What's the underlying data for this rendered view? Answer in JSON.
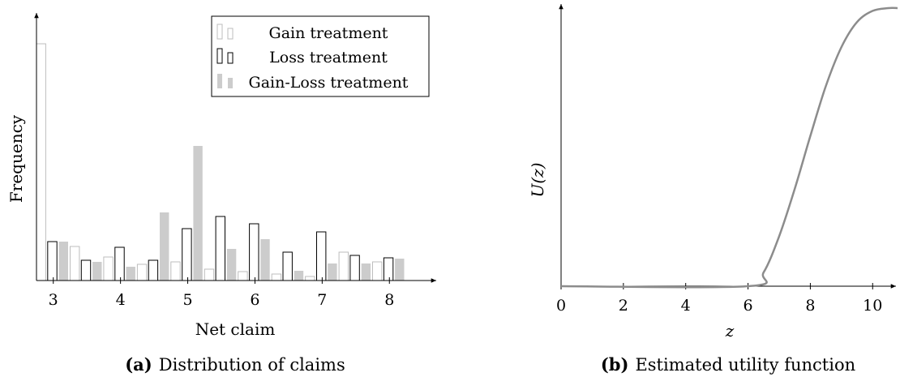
{
  "chart_data": [
    {
      "type": "bar",
      "caption_label": "(a)",
      "caption_text": "Distribution of claims",
      "xlabel": "Net claim",
      "ylabel": "Frequency",
      "title": "",
      "x_ticks": [
        3,
        4,
        5,
        6,
        7,
        8
      ],
      "xlim": [
        2.75,
        8.6
      ],
      "ylim": [
        0,
        300
      ],
      "legend_position": "top-right",
      "bin_width": 0.167,
      "series": [
        {
          "name": "Gain treatment",
          "style": "outline-light",
          "color": "#bdbdbd",
          "x": [
            2.75,
            3.25,
            3.75,
            4.25,
            4.75,
            5.25,
            5.75,
            6.25,
            6.75,
            7.25,
            7.75
          ],
          "values": [
            292,
            42,
            29,
            20,
            23,
            14,
            11,
            8,
            5,
            35,
            23
          ]
        },
        {
          "name": "Loss treatment",
          "style": "outline-dark",
          "color": "#000000",
          "x": [
            2.917,
            3.417,
            3.917,
            4.417,
            4.917,
            5.417,
            5.917,
            6.417,
            6.917,
            7.417,
            7.917
          ],
          "values": [
            48,
            25,
            41,
            25,
            64,
            79,
            70,
            35,
            60,
            31,
            28
          ]
        },
        {
          "name": "Gain-Loss treatment",
          "style": "filled",
          "color": "#cccccc",
          "x": [
            3.083,
            3.583,
            4.083,
            4.583,
            5.083,
            5.583,
            6.083,
            6.583,
            7.083,
            7.583,
            8.083
          ],
          "values": [
            48,
            23,
            17,
            84,
            166,
            39,
            51,
            12,
            21,
            21,
            27
          ]
        }
      ]
    },
    {
      "type": "line",
      "caption_label": "(b)",
      "caption_text": "Estimated utility function",
      "xlabel": "z",
      "ylabel": "U(z)",
      "title": "",
      "x_ticks": [
        0,
        2,
        4,
        6,
        8,
        10
      ],
      "xlim": [
        0,
        10.8
      ],
      "ylim": [
        0,
        1
      ],
      "line_color": "#8c8c8c",
      "x": [
        0,
        6,
        6.5,
        7,
        7.5,
        8,
        8.5,
        9,
        9.5,
        10,
        10.5,
        10.8
      ],
      "values": [
        0,
        0,
        0.05,
        0.18,
        0.35,
        0.54,
        0.72,
        0.86,
        0.95,
        0.99,
        1.0,
        1.0
      ]
    }
  ]
}
